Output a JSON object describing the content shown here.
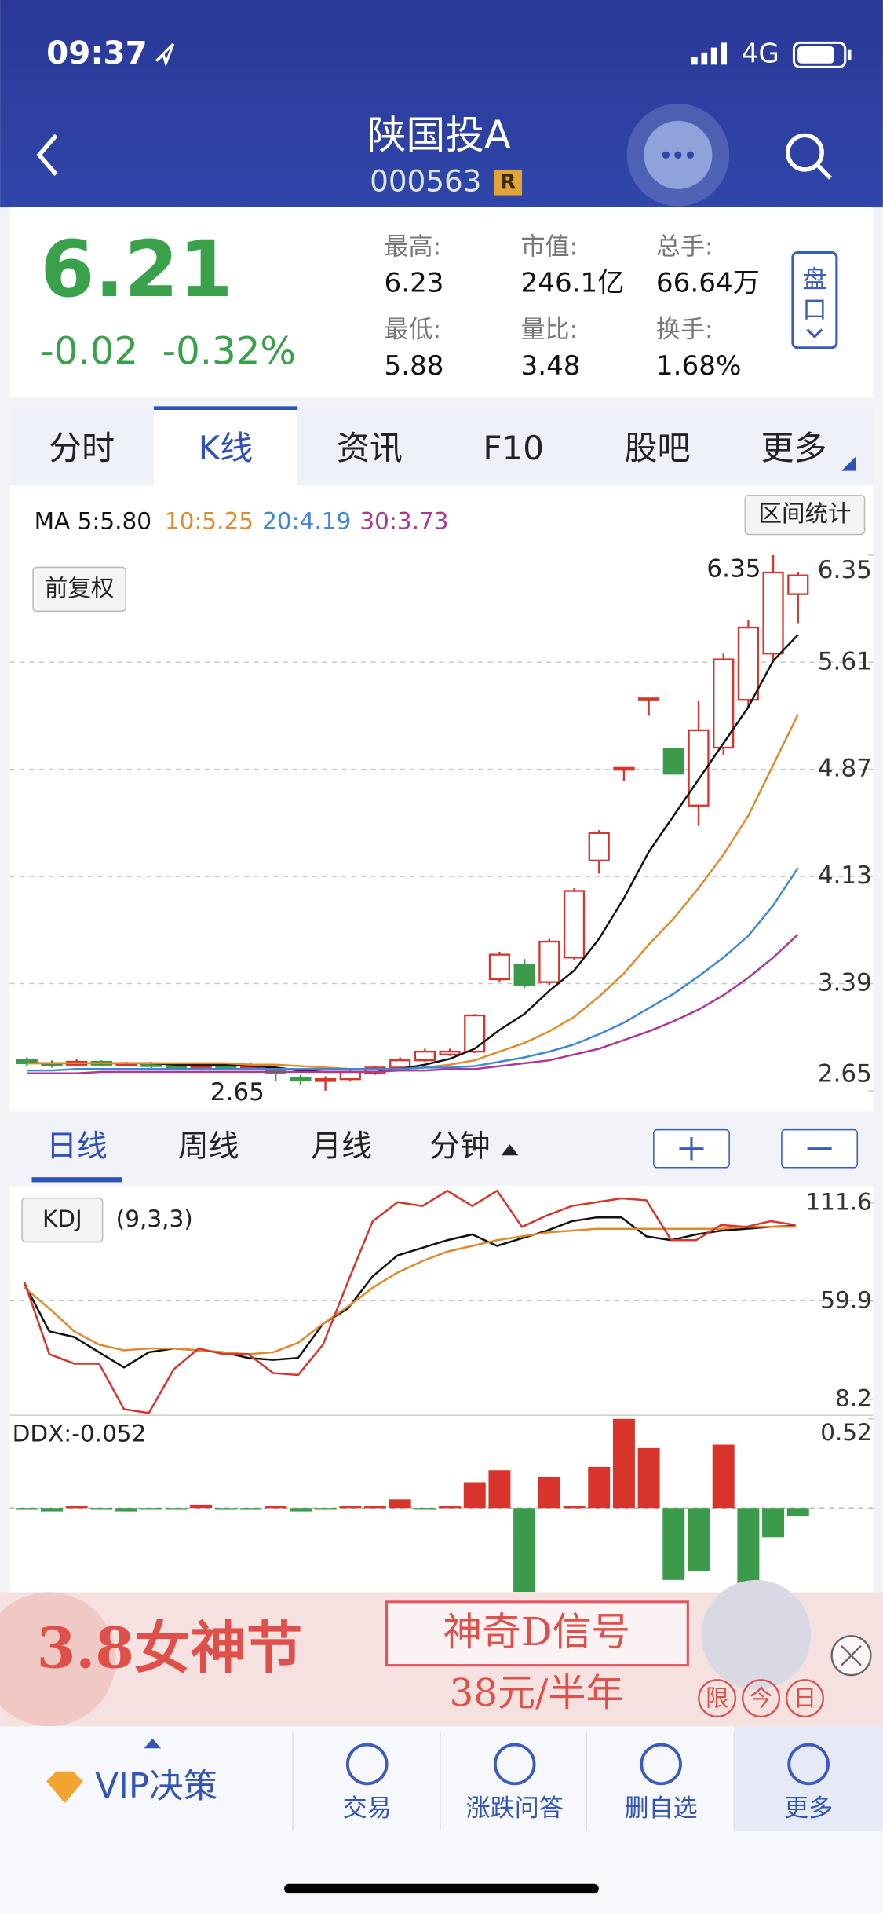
{
  "status_bar": {
    "time": "09:37",
    "network": "4G"
  },
  "header": {
    "title": "陕国投A",
    "code": "000563",
    "badge": "R"
  },
  "quote": {
    "price": "6.21",
    "change": "-0.02",
    "change_pct": "-0.32%",
    "stats": [
      {
        "label": "最高:",
        "value": "6.23"
      },
      {
        "label": "市值:",
        "value": "246.1亿"
      },
      {
        "label": "总手:",
        "value": "66.64万"
      },
      {
        "label": "最低:",
        "value": "5.88"
      },
      {
        "label": "量比:",
        "value": "3.48"
      },
      {
        "label": "换手:",
        "value": "1.68%"
      }
    ],
    "order_book_button": [
      "盘",
      "口"
    ]
  },
  "tabs": {
    "items": [
      "分时",
      "K线",
      "资讯",
      "F10",
      "股吧",
      "更多"
    ],
    "active": 1
  },
  "kline": {
    "type": "candlestick",
    "ma_legend": [
      "MA 5:5.80",
      "10:5.25",
      "20:4.19",
      "30:3.73"
    ],
    "range_button": "区间统计",
    "adjust_button": "前复权",
    "max_label": "6.35",
    "min_label": "2.65",
    "ylim": [
      2.65,
      6.35
    ],
    "yticks": [
      6.35,
      5.61,
      4.87,
      4.13,
      3.39,
      2.65
    ],
    "grid": true,
    "up_color": "#d8342c",
    "down_color": "#3b9b4a",
    "open": [
      2.86,
      2.84,
      2.83,
      2.85,
      2.83,
      2.84,
      2.82,
      2.81,
      2.82,
      2.81,
      2.8,
      2.74,
      2.72,
      2.73,
      2.77,
      2.81,
      2.86,
      2.9,
      2.92,
      3.42,
      3.52,
      3.4,
      3.57,
      4.24,
      4.87,
      5.35,
      5.01,
      4.62,
      5.02,
      5.35,
      5.67,
      6.08
    ],
    "close": [
      2.84,
      2.83,
      2.85,
      2.83,
      2.84,
      2.82,
      2.81,
      2.82,
      2.81,
      2.82,
      2.77,
      2.72,
      2.73,
      2.78,
      2.81,
      2.86,
      2.92,
      2.92,
      3.17,
      3.59,
      3.38,
      3.68,
      4.03,
      4.43,
      4.88,
      5.36,
      4.84,
      5.14,
      5.63,
      5.85,
      6.23,
      6.21
    ],
    "high": [
      2.88,
      2.86,
      2.87,
      2.86,
      2.85,
      2.85,
      2.84,
      2.84,
      2.83,
      2.84,
      2.81,
      2.76,
      2.75,
      2.79,
      2.82,
      2.88,
      2.94,
      2.94,
      3.18,
      3.61,
      3.56,
      3.7,
      4.05,
      4.45,
      4.88,
      5.36,
      5.01,
      5.34,
      5.67,
      5.9,
      6.35,
      6.23
    ],
    "low": [
      2.82,
      2.81,
      2.82,
      2.82,
      2.82,
      2.8,
      2.8,
      2.79,
      2.8,
      2.8,
      2.72,
      2.69,
      2.65,
      2.72,
      2.76,
      2.8,
      2.85,
      2.89,
      2.91,
      3.4,
      3.36,
      3.38,
      3.55,
      4.15,
      4.79,
      5.24,
      4.84,
      4.48,
      4.97,
      5.3,
      5.62,
      5.88
    ],
    "series": [
      {
        "color": "#111111",
        "values": [
          2.84,
          2.84,
          2.84,
          2.84,
          2.84,
          2.84,
          2.83,
          2.83,
          2.83,
          2.82,
          2.81,
          2.79,
          2.78,
          2.78,
          2.78,
          2.8,
          2.83,
          2.87,
          2.94,
          3.07,
          3.18,
          3.34,
          3.48,
          3.7,
          3.98,
          4.3,
          4.55,
          4.8,
          5.05,
          5.3,
          5.62,
          5.8
        ]
      },
      {
        "color": "#e28a2b",
        "values": [
          2.84,
          2.84,
          2.84,
          2.84,
          2.84,
          2.84,
          2.84,
          2.84,
          2.84,
          2.83,
          2.83,
          2.82,
          2.81,
          2.8,
          2.8,
          2.8,
          2.81,
          2.83,
          2.86,
          2.92,
          2.98,
          3.06,
          3.16,
          3.3,
          3.46,
          3.66,
          3.84,
          4.05,
          4.28,
          4.55,
          4.9,
          5.25
        ]
      },
      {
        "color": "#3f86d8",
        "values": [
          2.79,
          2.79,
          2.8,
          2.8,
          2.8,
          2.8,
          2.8,
          2.8,
          2.8,
          2.8,
          2.8,
          2.8,
          2.8,
          2.8,
          2.8,
          2.8,
          2.81,
          2.81,
          2.82,
          2.85,
          2.88,
          2.92,
          2.97,
          3.04,
          3.12,
          3.22,
          3.32,
          3.44,
          3.57,
          3.72,
          3.93,
          4.19
        ]
      },
      {
        "color": "#b13592",
        "values": [
          2.77,
          2.77,
          2.77,
          2.78,
          2.78,
          2.78,
          2.78,
          2.78,
          2.78,
          2.78,
          2.78,
          2.78,
          2.78,
          2.78,
          2.78,
          2.79,
          2.79,
          2.8,
          2.8,
          2.82,
          2.84,
          2.86,
          2.9,
          2.94,
          3.0,
          3.06,
          3.13,
          3.21,
          3.31,
          3.43,
          3.57,
          3.73
        ]
      }
    ]
  },
  "periods": {
    "items": [
      "日线",
      "周线",
      "月线",
      "分钟"
    ],
    "active": 0
  },
  "kdj": {
    "type": "line",
    "label": "KDJ",
    "params": "(9,3,3)",
    "ylim": [
      8.2,
      111.6
    ],
    "yticks": [
      111.6,
      59.9,
      8.2
    ],
    "series": [
      {
        "color": "#111111",
        "values": [
          69,
          44,
          41,
          33,
          25,
          33,
          35,
          34,
          33,
          30,
          29,
          30,
          48,
          56,
          73,
          84,
          88,
          92,
          95,
          89,
          93,
          97,
          102,
          104,
          104,
          94,
          92,
          95,
          97,
          98,
          99,
          99.5
        ]
      },
      {
        "color": "#e28a2b",
        "values": [
          67,
          56,
          44,
          37,
          34,
          35,
          35,
          34,
          33,
          32,
          33,
          38,
          48,
          57,
          67,
          75,
          81,
          86,
          89,
          92,
          94,
          96,
          97,
          98,
          98,
          98,
          98,
          98,
          98,
          99,
          99,
          99
        ]
      },
      {
        "color": "#d8342c",
        "values": [
          70,
          32,
          27,
          27,
          3,
          1,
          24,
          35,
          32,
          32,
          22,
          21,
          37,
          70,
          102,
          112,
          110,
          118,
          110,
          118,
          99,
          105,
          110,
          112,
          114,
          113,
          92,
          92,
          100,
          99,
          102,
          100
        ]
      }
    ]
  },
  "ddx": {
    "type": "bar",
    "label": "DDX:-0.052",
    "ylim": [
      -0.52,
      0.52
    ],
    "yticks": [
      0.52
    ],
    "up_color": "#d8342c",
    "down_color": "#3b9b4a",
    "values": [
      -0.01,
      -0.02,
      0.01,
      -0.01,
      -0.02,
      -0.01,
      -0.01,
      0.02,
      -0.01,
      -0.01,
      0.01,
      -0.02,
      -0.01,
      0.01,
      0.01,
      0.05,
      -0.01,
      0.01,
      0.15,
      0.22,
      -0.49,
      0.18,
      0.01,
      0.24,
      0.52,
      0.35,
      -0.42,
      -0.37,
      0.37,
      -0.49,
      -0.17,
      -0.05
    ]
  },
  "ad": {
    "title": "3.8女神节",
    "product": "神奇D信号",
    "price": "38元/半年",
    "badges": [
      "限",
      "今",
      "日"
    ]
  },
  "nav": {
    "items": [
      "VIP决策",
      "交易",
      "涨跌问答",
      "删自选",
      "更多"
    ]
  }
}
